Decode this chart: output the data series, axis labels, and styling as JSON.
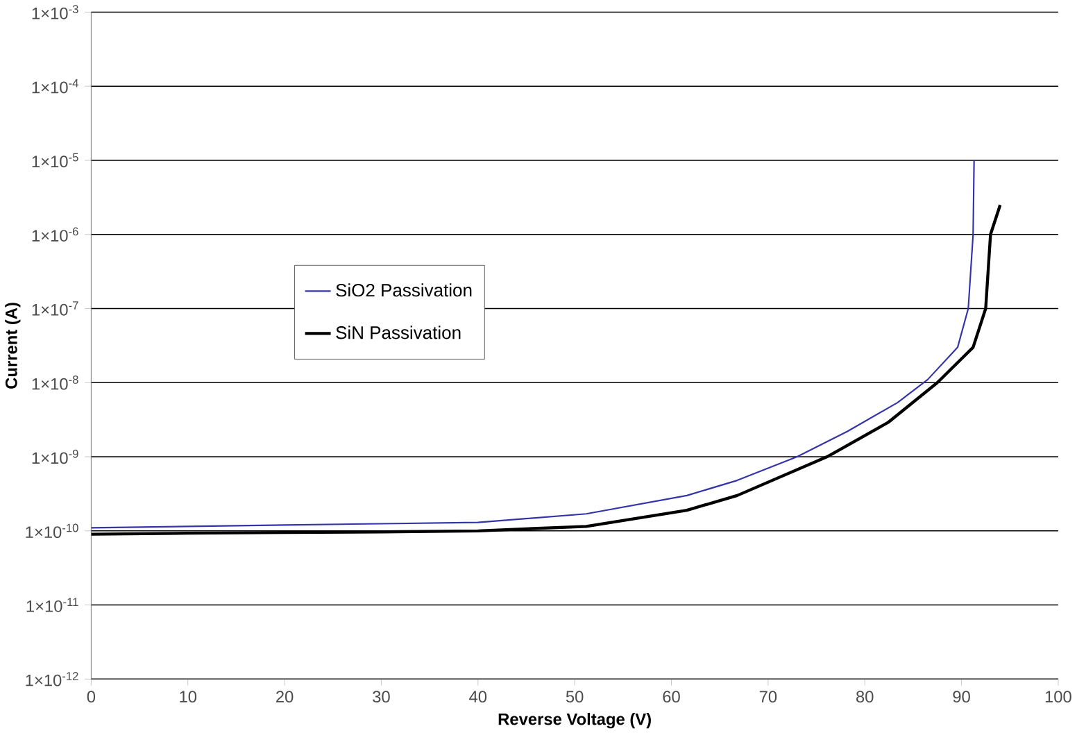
{
  "chart_data": {
    "type": "line",
    "xlabel": "Reverse Voltage (V)",
    "ylabel": "Current (A)",
    "log": "y",
    "grid": "y",
    "legend": "left",
    "xlim": [
      0,
      100
    ],
    "xticks": [
      0,
      10,
      20,
      30,
      40,
      50,
      60,
      70,
      80,
      90,
      100
    ],
    "ylim": [
      1e-12,
      0.001
    ],
    "yticks": [
      {
        "value": 1e-12,
        "label": "1×10$^{-12}$"
      },
      {
        "value": 1e-11,
        "label": "1×10$^{-11}$"
      },
      {
        "value": 1e-10,
        "label": "1×10$^{-10}$"
      },
      {
        "value": 1e-09,
        "label": "1×10$^{-9}$"
      },
      {
        "value": 1e-08,
        "label": "1×10$^{-8}$"
      },
      {
        "value": 1e-07,
        "label": "1×10$^{-7}$"
      },
      {
        "value": 1e-06,
        "label": "1×10$^{-6}$"
      },
      {
        "value": 1e-05,
        "label": "1×10$^{-5}$"
      },
      {
        "value": 0.0001,
        "label": "1×10$^{-4}$"
      },
      {
        "value": 0.001,
        "label": "1×10$^{-3}$"
      }
    ],
    "series": [
      {
        "name": "SiO2 Passivation",
        "color": "#3333aa",
        "x": [
          0,
          10,
          20,
          30,
          40,
          51.2,
          61.6,
          66.8,
          73.0,
          78.2,
          83.4,
          86.5,
          89.6,
          90.7,
          91.2,
          91.3
        ],
        "values": [
          1.1e-10,
          1.15e-10,
          1.2e-10,
          1.25e-10,
          1.3e-10,
          1.7e-10,
          3e-10,
          4.8e-10,
          1e-09,
          2.2e-09,
          5.4e-09,
          1.1e-08,
          3e-08,
          1e-07,
          1e-06,
          1e-05
        ]
      },
      {
        "name": "SiN Passivation",
        "color": "#000000",
        "x": [
          0,
          10,
          20,
          30,
          40,
          51.2,
          61.6,
          66.8,
          76.1,
          82.4,
          87.5,
          91.2,
          92.5,
          93.0,
          94.0
        ],
        "values": [
          9e-11,
          9.3e-11,
          9.5e-11,
          9.7e-11,
          1e-10,
          1.15e-10,
          1.9e-10,
          3e-10,
          1e-09,
          2.9e-09,
          1e-08,
          3e-08,
          1e-07,
          1e-06,
          2.5e-06
        ]
      }
    ]
  }
}
